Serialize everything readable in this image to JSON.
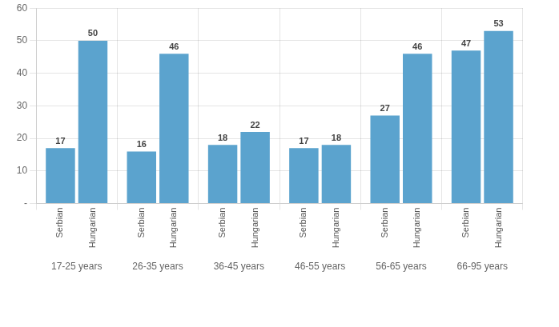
{
  "chart_data": {
    "type": "bar",
    "categories": [
      "17-25 years",
      "26-35 years",
      "36-45 years",
      "46-55 years",
      "56-65 years",
      "66-95 years"
    ],
    "series": [
      {
        "name": "Serbian",
        "color": "#5ba3ce",
        "values": [
          17,
          16,
          18,
          17,
          27,
          47
        ]
      },
      {
        "name": "Hungarian",
        "color": "#5ba3ce",
        "values": [
          50,
          46,
          22,
          18,
          46,
          53
        ]
      }
    ],
    "ylim": [
      0,
      60
    ],
    "yticks": [
      {
        "value": 0,
        "label": "-"
      },
      10,
      20,
      30,
      40,
      50,
      60
    ],
    "grid": true,
    "data_labels": true
  }
}
